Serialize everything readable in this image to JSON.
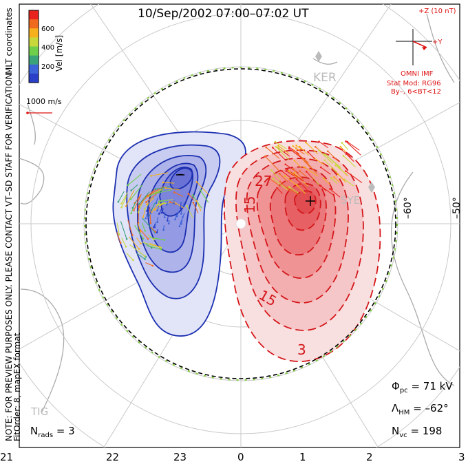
{
  "header": {
    "title": "10/Sep/2002  07:00–07:02  UT"
  },
  "colorbar": {
    "label": "Vel [m/s]",
    "coord_label": "MLT coordinates",
    "ticks": [
      "600",
      "400",
      "200"
    ],
    "colors": [
      "#e8231e",
      "#f06a1e",
      "#f6b01e",
      "#c8d83c",
      "#6fcf4a",
      "#3aa37a",
      "#3c64d8",
      "#2b3ec8"
    ]
  },
  "scale_vector": {
    "label": "1000 m/s"
  },
  "imf": {
    "z_label": "+Z (10 nT)",
    "y_label": "+Y",
    "source_label": "OMNI IMF",
    "model_label": "Stat Mod: RG96",
    "model_params": "By–, 6<BT<12"
  },
  "notice": {
    "line1": "NOTE: FOR PREVIEW PURPOSES ONLY. PLEASE CONTACT VT–SD STAFF FOR VERIFICATION.",
    "line2": "FitOrder: 8, mapEX format"
  },
  "stations": {
    "ker": "KER",
    "sye": "SYE",
    "tig": "TIG"
  },
  "latitude_labels": [
    "–60°",
    "–50°"
  ],
  "contour_labels": [
    "–",
    "+",
    "27",
    "15",
    "15",
    "3"
  ],
  "stats": {
    "phi_label": "Φ",
    "phi_sub": "pc",
    "phi_value": "=  71  kV",
    "lambda_label": "Λ",
    "lambda_sub": "HM",
    "lambda_value": "=  –62°",
    "nvc_label": "N",
    "nvc_sub": "vc",
    "nvc_value": "=  198",
    "nrads_label": "N",
    "nrads_sub": "rads",
    "nrads_value": "=  3"
  },
  "mlt_axis": [
    "21",
    "22",
    "23",
    "0",
    "1",
    "2",
    "3"
  ],
  "colors": {
    "negative_cell": "#1b2fb0",
    "positive_cell": "#d4161a",
    "hmb": "#7ecb3a"
  }
}
